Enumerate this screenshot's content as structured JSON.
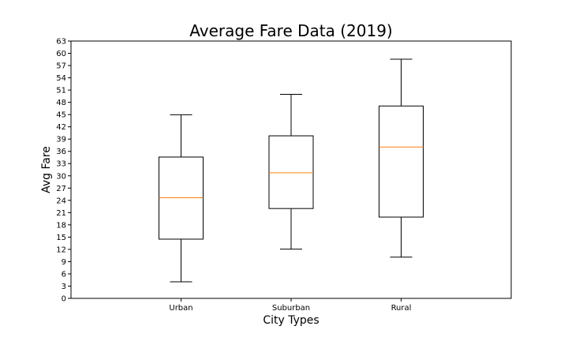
{
  "chart_data": {
    "type": "box",
    "title": "Average Fare Data (2019)",
    "xlabel": "City Types",
    "ylabel": "Avg Fare",
    "ylim": [
      0,
      63
    ],
    "yticks": [
      0,
      3,
      6,
      9,
      12,
      15,
      18,
      21,
      24,
      27,
      30,
      33,
      36,
      39,
      42,
      45,
      48,
      51,
      54,
      57,
      60,
      63
    ],
    "grid": false,
    "categories": [
      "Urban",
      "Suburban",
      "Rural"
    ],
    "boxes": [
      {
        "category": "Urban",
        "whisker_low": 4.05,
        "q1": 14.5,
        "median": 24.65,
        "q3": 34.6,
        "whisker_high": 44.95
      },
      {
        "category": "Suburban",
        "whisker_low": 12.05,
        "q1": 22.0,
        "median": 30.75,
        "q3": 39.8,
        "whisker_high": 49.95
      },
      {
        "category": "Rural",
        "whisker_low": 10.1,
        "q1": 19.9,
        "median": 37.05,
        "q3": 47.1,
        "whisker_high": 58.55
      }
    ],
    "colors": {
      "box": "#000000",
      "median": "#ff7f0e"
    }
  }
}
